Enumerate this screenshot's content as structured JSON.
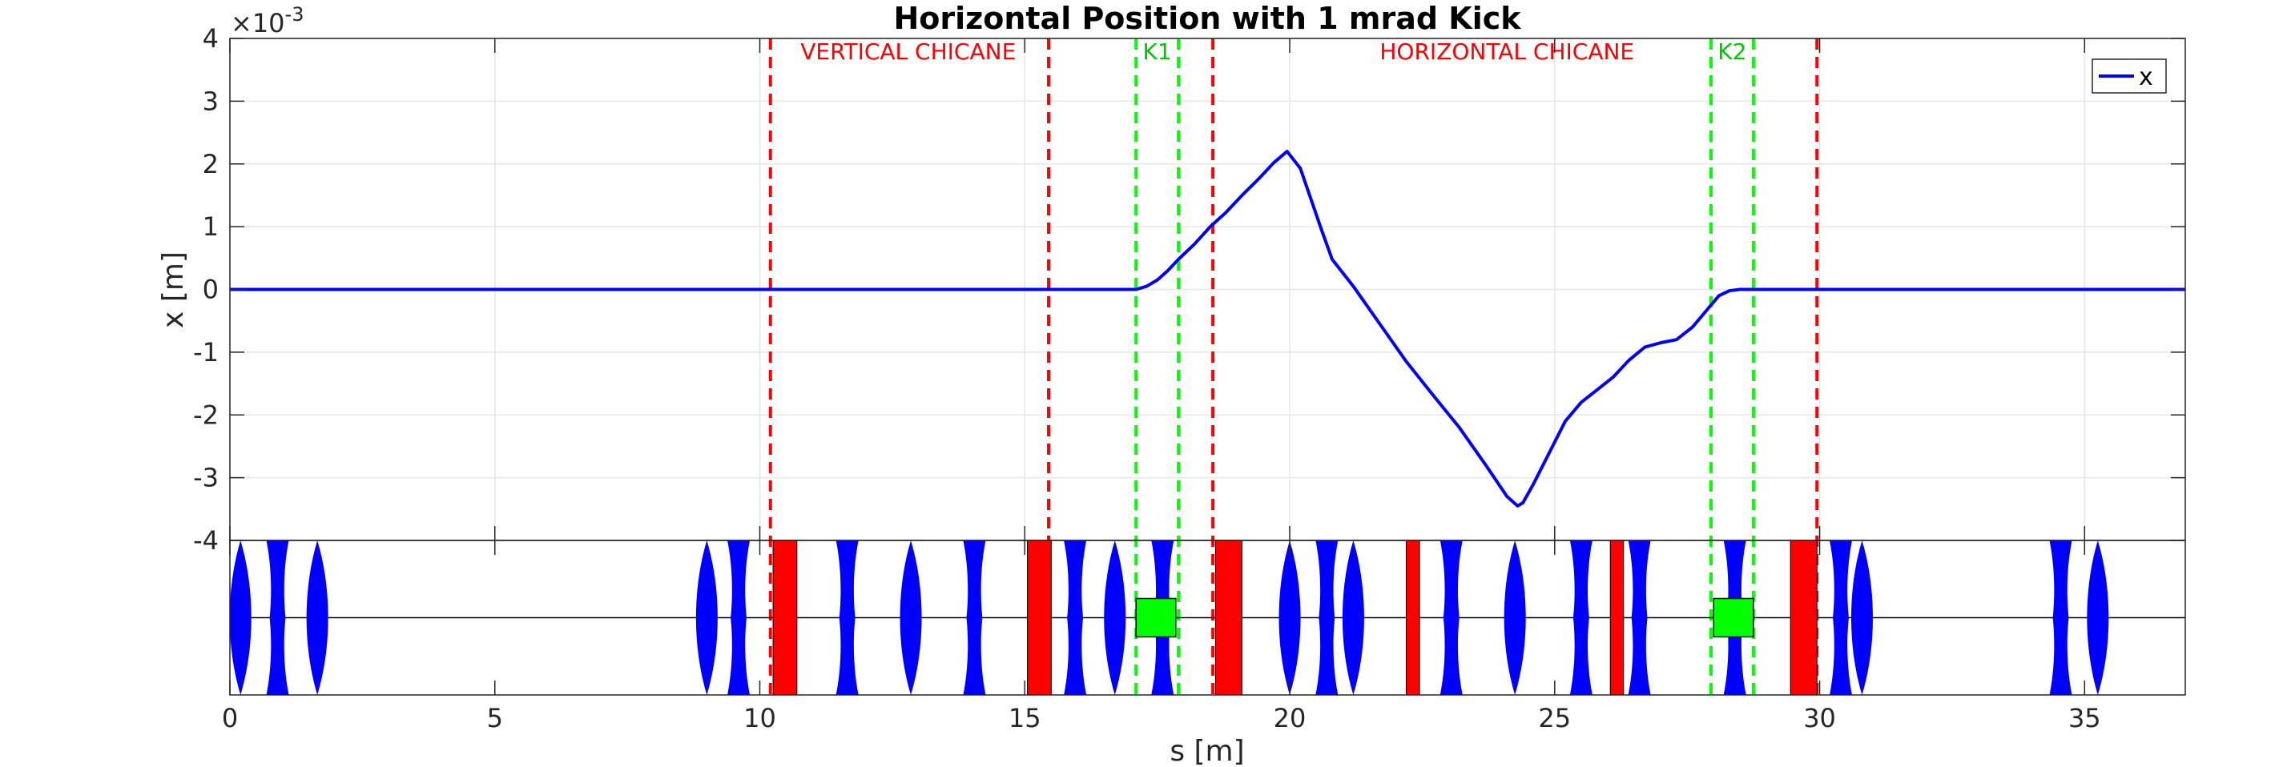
{
  "chart_data": {
    "type": "line",
    "title": "Horizontal Position with 1 mrad Kick",
    "xlabel": "s [m]",
    "ylabel": "x [m]",
    "y_exponent_label": "×10",
    "y_exponent_power": "-3",
    "xlim": [
      0,
      36.9
    ],
    "ylim": [
      -4,
      4
    ],
    "y_scale_factor": 0.001,
    "xticks": [
      0,
      5,
      10,
      15,
      20,
      25,
      30,
      35
    ],
    "xtick_labels": [
      "0",
      "5",
      "10",
      "15",
      "20",
      "25",
      "30",
      "35"
    ],
    "yticks": [
      4,
      3,
      2,
      1,
      0,
      -1,
      -2,
      -3,
      -4
    ],
    "ytick_labels": [
      "4",
      "3",
      "2",
      "1",
      "0",
      "-1",
      "-2",
      "-3",
      "-4"
    ],
    "grid": true,
    "legend": {
      "position": "top-right",
      "entries": [
        "x"
      ]
    },
    "series": [
      {
        "name": "x",
        "color": "#0000ff",
        "x": [
          0,
          10,
          15,
          17.1,
          17.3,
          17.5,
          17.7,
          17.9,
          18.2,
          18.5,
          18.8,
          19.1,
          19.4,
          19.7,
          19.95,
          20.2,
          20.6,
          20.8,
          21.2,
          21.7,
          22.2,
          22.7,
          23.2,
          23.7,
          24.1,
          24.3,
          24.4,
          24.6,
          24.9,
          25.2,
          25.5,
          25.8,
          26.1,
          26.4,
          26.7,
          27.0,
          27.3,
          27.6,
          27.9,
          28.1,
          28.3,
          28.5,
          28.8,
          29.2,
          30,
          33,
          36.9
        ],
        "y": [
          0,
          0,
          0,
          0,
          0.05,
          0.15,
          0.3,
          0.48,
          0.72,
          1.0,
          1.23,
          1.5,
          1.75,
          2.02,
          2.2,
          1.93,
          0.95,
          0.48,
          0.05,
          -0.55,
          -1.15,
          -1.68,
          -2.2,
          -2.8,
          -3.3,
          -3.45,
          -3.4,
          -3.1,
          -2.6,
          -2.1,
          -1.8,
          -1.6,
          -1.4,
          -1.13,
          -0.92,
          -0.85,
          -0.8,
          -0.6,
          -0.3,
          -0.1,
          -0.02,
          0,
          0,
          0,
          0,
          0,
          0
        ]
      }
    ],
    "markers": [
      {
        "x": 10.2,
        "color": "#ff0000"
      },
      {
        "x": 15.45,
        "color": "#ff0000"
      },
      {
        "x": 17.1,
        "color": "#00ff00"
      },
      {
        "x": 17.9,
        "color": "#00ff00"
      },
      {
        "x": 18.55,
        "color": "#ff0000"
      },
      {
        "x": 27.95,
        "color": "#00ff00"
      },
      {
        "x": 28.75,
        "color": "#00ff00"
      },
      {
        "x": 29.95,
        "color": "#ff0000"
      }
    ],
    "region_labels": [
      {
        "text": "VERTICAL CHICANE",
        "x": 12.8,
        "color": "#ff0000"
      },
      {
        "text": "K1",
        "x": 17.5,
        "color": "#00c800"
      },
      {
        "text": "HORIZONTAL CHICANE",
        "x": 24.1,
        "color": "#ff0000"
      },
      {
        "text": "K2",
        "x": 28.35,
        "color": "#00c800"
      }
    ],
    "lattice": {
      "quadrupoles": [
        {
          "s": 0.2,
          "dir": "focusing"
        },
        {
          "s": 0.9,
          "dir": "defocusing"
        },
        {
          "s": 1.65,
          "dir": "focusing"
        },
        {
          "s": 9.0,
          "dir": "focusing"
        },
        {
          "s": 9.6,
          "dir": "defocusing"
        },
        {
          "s": 11.65,
          "dir": "defocusing"
        },
        {
          "s": 12.85,
          "dir": "focusing"
        },
        {
          "s": 14.05,
          "dir": "defocusing"
        },
        {
          "s": 15.95,
          "dir": "defocusing"
        },
        {
          "s": 16.7,
          "dir": "focusing"
        },
        {
          "s": 17.6,
          "dir": "defocusing"
        },
        {
          "s": 20.0,
          "dir": "focusing"
        },
        {
          "s": 20.7,
          "dir": "defocusing"
        },
        {
          "s": 21.2,
          "dir": "focusing"
        },
        {
          "s": 23.05,
          "dir": "defocusing"
        },
        {
          "s": 24.25,
          "dir": "focusing"
        },
        {
          "s": 25.5,
          "dir": "defocusing"
        },
        {
          "s": 26.6,
          "dir": "defocusing"
        },
        {
          "s": 28.4,
          "dir": "defocusing"
        },
        {
          "s": 30.4,
          "dir": "defocusing"
        },
        {
          "s": 30.8,
          "dir": "focusing"
        },
        {
          "s": 34.55,
          "dir": "defocusing"
        },
        {
          "s": 35.25,
          "dir": "focusing"
        }
      ],
      "dipoles": [
        {
          "start": 10.25,
          "end": 10.7
        },
        {
          "start": 15.05,
          "end": 15.5
        },
        {
          "start": 18.6,
          "end": 19.1
        },
        {
          "start": 22.2,
          "end": 22.45
        },
        {
          "start": 26.05,
          "end": 26.3
        },
        {
          "start": 29.45,
          "end": 29.95
        }
      ],
      "kickers": [
        {
          "start": 17.1,
          "end": 17.85
        },
        {
          "start": 28.0,
          "end": 28.75
        }
      ]
    }
  }
}
